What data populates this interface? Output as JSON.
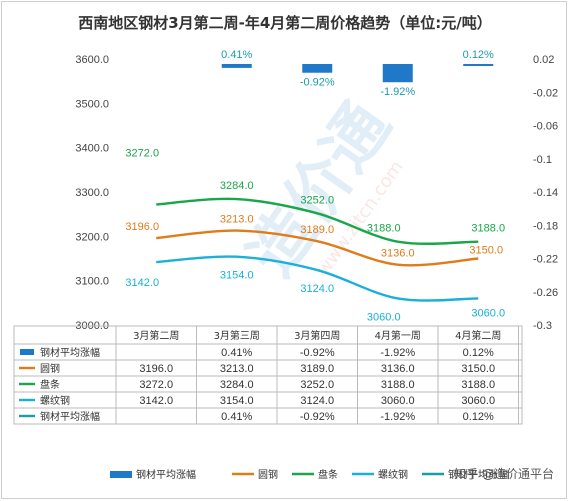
{
  "chart_data": {
    "type": "bar+line",
    "title": "西南地区钢材3月第二周-年4月第二周价格趋势（单位:元/吨）",
    "categories": [
      "3月第二周",
      "3月第三周",
      "3月第四周",
      "4月第一周",
      "4月第二周"
    ],
    "y_left": {
      "min": 3000,
      "max": 3600,
      "ticks": [
        "3000.0",
        "3100.0",
        "3200.0",
        "3300.0",
        "3400.0",
        "3500.0",
        "3600.0"
      ]
    },
    "y_right": {
      "min": -0.3,
      "max": 0.02,
      "ticks": [
        "0.02",
        "-0.02",
        "-0.06",
        "-0.1",
        "-0.14",
        "-0.18",
        "-0.22",
        "-0.26",
        "-0.3"
      ]
    },
    "bar_series": {
      "name": "钢材平均涨幅",
      "values": [
        null,
        0.41,
        -0.92,
        -1.92,
        0.12
      ],
      "labels": [
        "",
        "0.41%",
        "-0.92%",
        "-1.92%",
        "0.12%"
      ],
      "color": "#1f78c8"
    },
    "series": [
      {
        "name": "圆钢",
        "color": "#e07b1a",
        "values": [
          3196.0,
          3213.0,
          3189.0,
          3136.0,
          3150.0
        ],
        "labels": [
          "3196.0",
          "3213.0",
          "3189.0",
          "3136.0",
          "3150.0"
        ]
      },
      {
        "name": "盘条",
        "color": "#1aa64a",
        "values": [
          3272.0,
          3284.0,
          3252.0,
          3188.0,
          3188.0
        ],
        "labels": [
          "3272.0",
          "3284.0",
          "3252.0",
          "3188.0",
          "3188.0"
        ]
      },
      {
        "name": "螺纹钢",
        "color": "#1ab0d8",
        "values": [
          3142.0,
          3154.0,
          3124.0,
          3060.0,
          3060.0
        ],
        "labels": [
          "3142.0",
          "3154.0",
          "3124.0",
          "3060.0",
          "3060.0"
        ]
      },
      {
        "name": "钢材平均涨幅",
        "color": "#1a9ca8",
        "values": [
          null,
          0.41,
          -0.92,
          -1.92,
          0.12
        ],
        "labels": [
          "",
          "0.41%",
          "-0.92%",
          "-1.92%",
          "0.12%"
        ]
      }
    ],
    "table_rows": [
      {
        "name": "钢材平均涨幅",
        "cells": [
          "",
          "0.41%",
          "-0.92%",
          "-1.92%",
          "0.12%"
        ]
      },
      {
        "name": "圆钢",
        "cells": [
          "3196.0",
          "3213.0",
          "3189.0",
          "3136.0",
          "3150.0"
        ]
      },
      {
        "name": "盘条",
        "cells": [
          "3272.0",
          "3284.0",
          "3252.0",
          "3188.0",
          "3188.0"
        ]
      },
      {
        "name": "螺纹钢",
        "cells": [
          "3142.0",
          "3154.0",
          "3124.0",
          "3060.0",
          "3060.0"
        ]
      },
      {
        "name": "钢材平均涨幅",
        "cells": [
          "",
          "0.41%",
          "-0.92%",
          "-1.92%",
          "0.12%"
        ]
      }
    ],
    "legend": [
      "钢材平均涨幅",
      "圆钢",
      "盘条",
      "螺纹钢",
      "钢材平均涨幅"
    ],
    "legend_position": "bottom",
    "grid": false
  },
  "watermark": {
    "logo_text": "造价通",
    "url_text": "www.zjtcn.com"
  },
  "footer": {
    "source_text": "知乎 @造价通平台"
  }
}
